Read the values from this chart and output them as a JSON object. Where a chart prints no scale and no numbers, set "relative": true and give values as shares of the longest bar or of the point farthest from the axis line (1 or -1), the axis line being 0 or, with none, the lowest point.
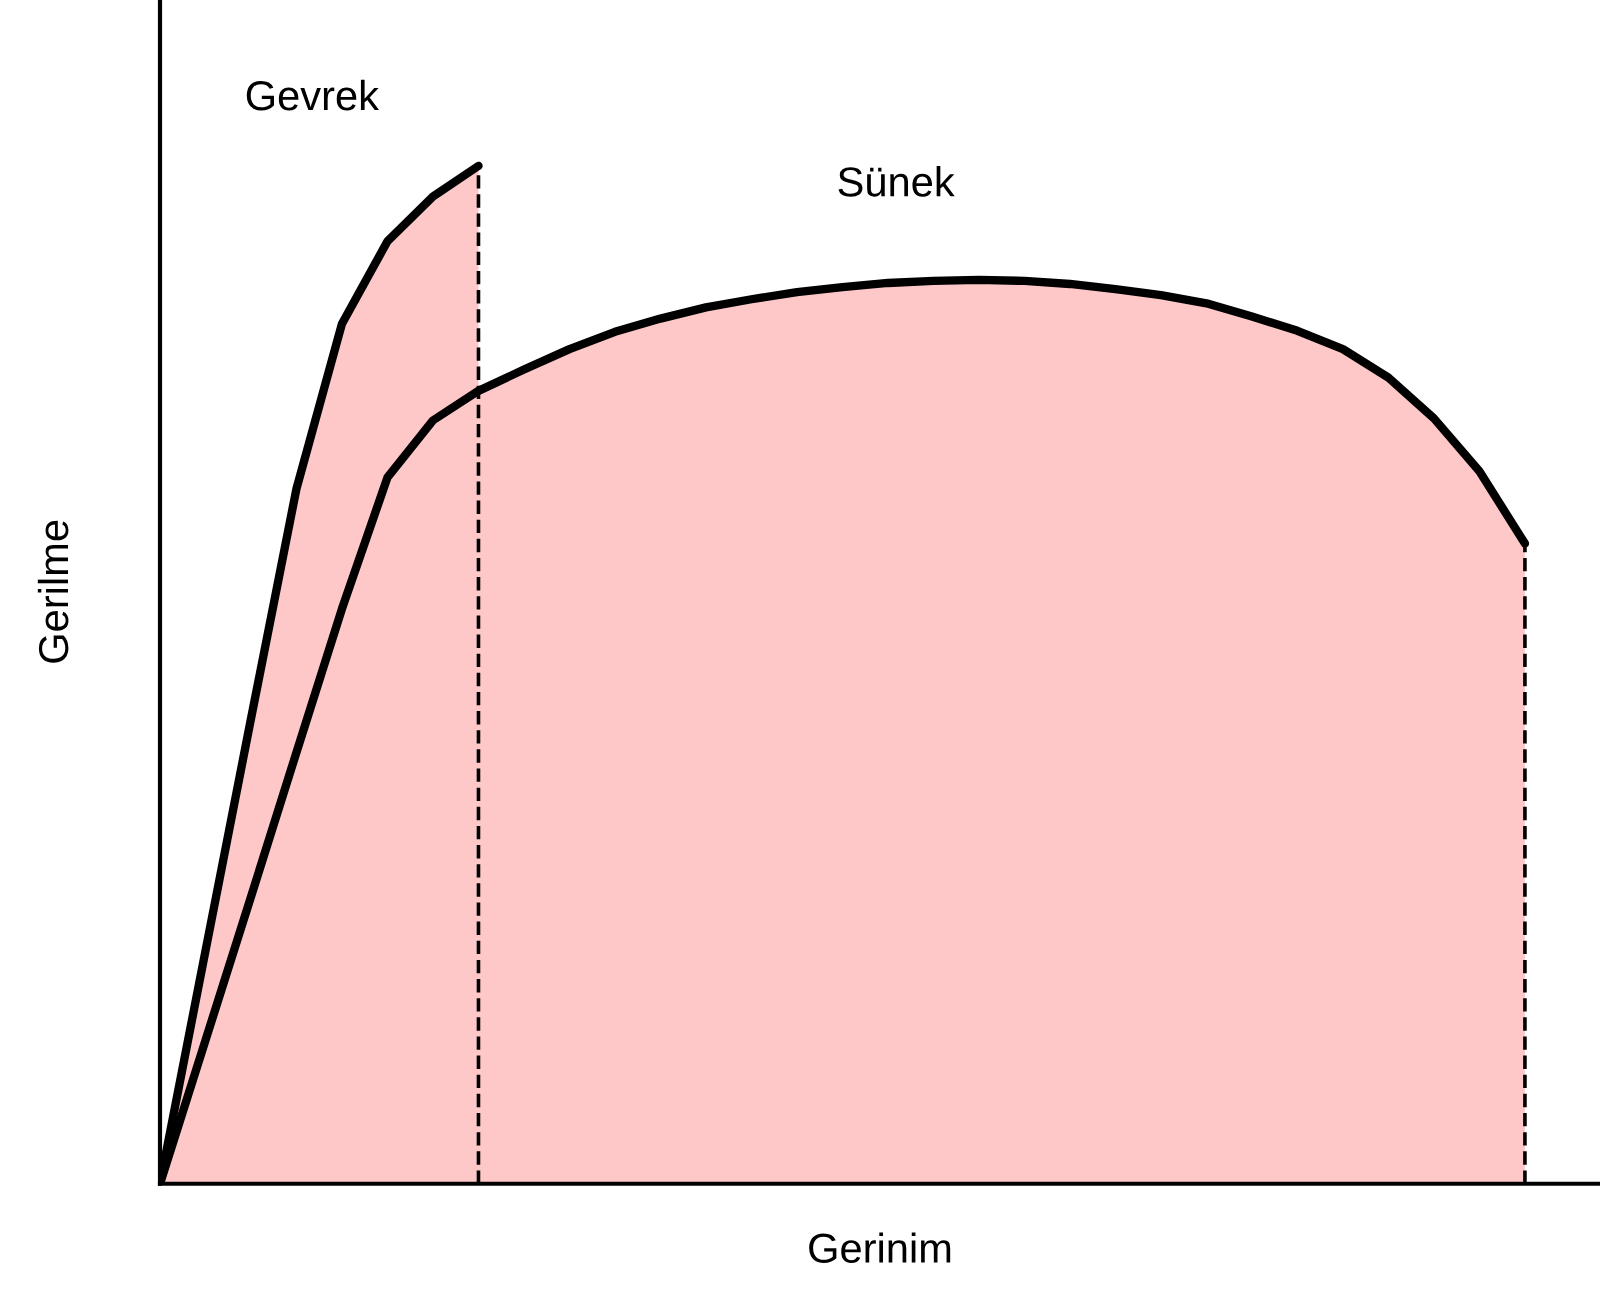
{
  "chart_data": {
    "type": "area",
    "relative": true,
    "xlabel": "Gerinim",
    "ylabel": "Gerilme",
    "line_style": "solid",
    "legend": false,
    "categories": [
      null,
      null,
      null,
      null,
      null,
      null,
      null,
      null,
      null,
      null,
      null,
      null,
      null,
      null,
      null,
      null,
      null,
      null,
      null,
      null,
      null,
      null,
      null,
      null,
      null,
      null,
      null,
      null,
      null,
      null,
      null
    ],
    "series": [
      {
        "name": "Gevrek",
        "color": "#ffc8c8",
        "values": [
          0,
          0.229,
          0.457,
          0.683,
          0.845,
          0.926,
          0.97,
          1.0,
          null,
          null,
          null,
          null,
          null,
          null,
          null,
          null,
          null,
          null,
          null,
          null,
          null,
          null,
          null,
          null,
          null,
          null,
          null,
          null,
          null,
          null,
          null
        ]
      },
      {
        "name": "Sünek",
        "color": "#ffc8c8",
        "values": [
          0,
          0.141,
          0.282,
          0.424,
          0.565,
          0.694,
          0.75,
          0.779,
          0.8,
          0.82,
          0.837,
          0.85,
          0.861,
          0.869,
          0.876,
          0.881,
          0.885,
          0.887,
          0.888,
          0.887,
          0.884,
          0.879,
          0.873,
          0.865,
          0.852,
          0.838,
          0.82,
          0.792,
          0.752,
          0.7,
          0.629
        ]
      }
    ]
  }
}
